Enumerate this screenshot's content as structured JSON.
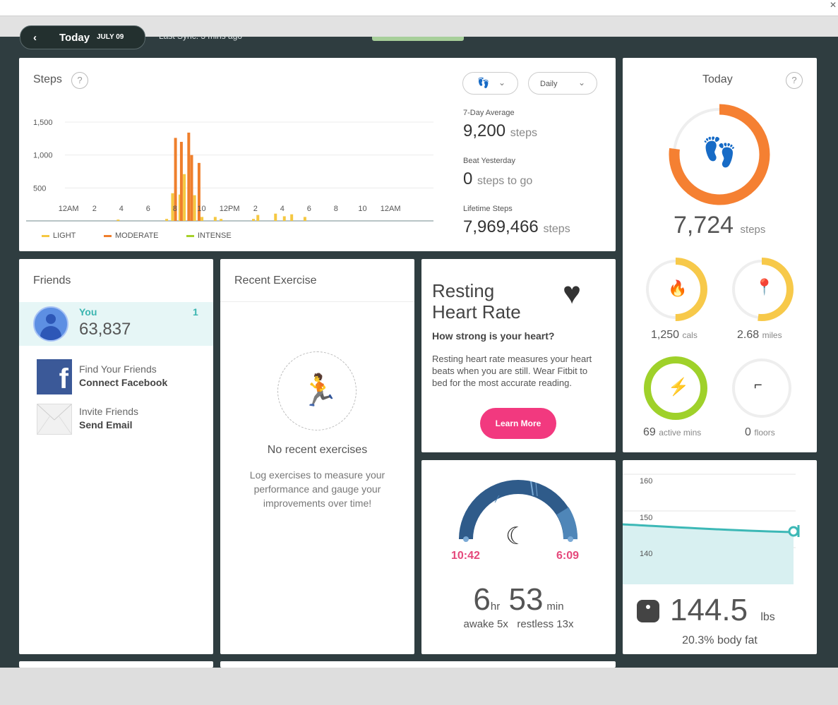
{
  "header": {
    "date_label": "Today",
    "date_value": "JULY 09",
    "last_sync": "Last Sync: 3 mins ago"
  },
  "steps": {
    "title": "Steps",
    "help": "?",
    "dropdown_type_icon": "footprints-icon",
    "dropdown_period": "Daily",
    "avg_label": "7-Day Average",
    "avg_value": "9,200",
    "avg_unit": "steps",
    "beat_label": "Beat Yesterday",
    "beat_value": "0",
    "beat_unit": "steps to go",
    "lifetime_label": "Lifetime Steps",
    "lifetime_value": "7,969,466",
    "lifetime_unit": "steps",
    "colors": {
      "light": "#f5c842",
      "moderate": "#ef7f2c",
      "intense": "#a6d12a"
    }
  },
  "chart_data": {
    "type": "bar",
    "title": "Steps",
    "y_ticks": [
      "1,500",
      "1,000",
      "500"
    ],
    "ylim": [
      0,
      1500
    ],
    "x_ticks": [
      "12AM",
      "2",
      "4",
      "6",
      "8",
      "10",
      "12PM",
      "2",
      "4",
      "6",
      "8",
      "10",
      "12AM"
    ],
    "legend": [
      "LIGHT",
      "MODERATE",
      "INTENSE"
    ],
    "series": [
      {
        "name": "LIGHT",
        "values": [
          [
            2.8,
            20
          ],
          [
            6.1,
            30
          ],
          [
            6.5,
            420
          ],
          [
            7.0,
            400
          ],
          [
            7.3,
            710
          ],
          [
            8.0,
            390
          ],
          [
            8.3,
            200
          ],
          [
            8.5,
            60
          ],
          [
            9.4,
            60
          ],
          [
            9.8,
            30
          ],
          [
            12.0,
            30
          ],
          [
            12.3,
            90
          ],
          [
            13.5,
            110
          ],
          [
            14.1,
            70
          ],
          [
            14.6,
            100
          ],
          [
            15.5,
            60
          ]
        ]
      },
      {
        "name": "MODERATE",
        "values": [
          [
            6.7,
            1260
          ],
          [
            7.1,
            1200
          ],
          [
            7.6,
            1340
          ],
          [
            7.8,
            1000
          ],
          [
            8.3,
            880
          ]
        ]
      },
      {
        "name": "INTENSE",
        "values": []
      }
    ]
  },
  "today": {
    "title": "Today",
    "help": "?",
    "steps_value": "7,724",
    "steps_unit": "steps",
    "steps_progress": 0.77,
    "cals_value": "1,250",
    "cals_unit": "cals",
    "cals_progress": 0.5,
    "miles_value": "2.68",
    "miles_unit": "miles",
    "miles_progress": 0.52,
    "active_value": "69",
    "active_unit": "active mins",
    "active_progress": 1.0,
    "floors_value": "0",
    "floors_unit": "floors",
    "floors_progress": 0,
    "icons": {
      "steps": "footprints-icon",
      "cals": "flame-icon",
      "miles": "location-pin-icon",
      "active": "lightning-icon",
      "floors": "stairs-icon"
    },
    "colors": {
      "steps": "#f58032",
      "cals": "#f7c94a",
      "active": "#9fd12a",
      "track": "#eeeeee"
    }
  },
  "friends": {
    "title": "Friends",
    "you_label": "You",
    "you_rank": "1",
    "you_steps": "63,837",
    "items": [
      {
        "line1": "Find Your Friends",
        "line2": "Connect Facebook",
        "icon": "facebook-icon"
      },
      {
        "line1": "Invite Friends",
        "line2": "Send Email",
        "icon": "envelope-icon"
      }
    ]
  },
  "exercise": {
    "title": "Recent Exercise",
    "icon": "running-person-icon",
    "empty_title": "No recent exercises",
    "empty_text": "Log exercises to measure your performance and gauge your improvements over time!"
  },
  "heart": {
    "title_line1": "Resting",
    "title_line2": "Heart Rate",
    "icon": "heart-icon",
    "subtitle": "How strong is your heart?",
    "body": "Resting heart rate measures your heart beats when you are still. Wear Fitbit to bed for the most accurate reading.",
    "button": "Learn More",
    "button_color": "#f2397f"
  },
  "sleep": {
    "icon": "moon-icon",
    "start": "10:42",
    "end": "6:09",
    "hours": "6",
    "hours_unit": "hr",
    "mins": "53",
    "mins_unit": "min",
    "awake": "awake 5x",
    "restless": "restless 13x",
    "arc_color": "#2f5b8a"
  },
  "weight": {
    "y_ticks": [
      "160",
      "150",
      "140"
    ],
    "value": "144.5",
    "unit": "lbs",
    "body_fat": "20.3% body fat",
    "icon": "scale-icon",
    "line_color": "#3cb8b6",
    "fill_color": "#d8f0f1"
  }
}
